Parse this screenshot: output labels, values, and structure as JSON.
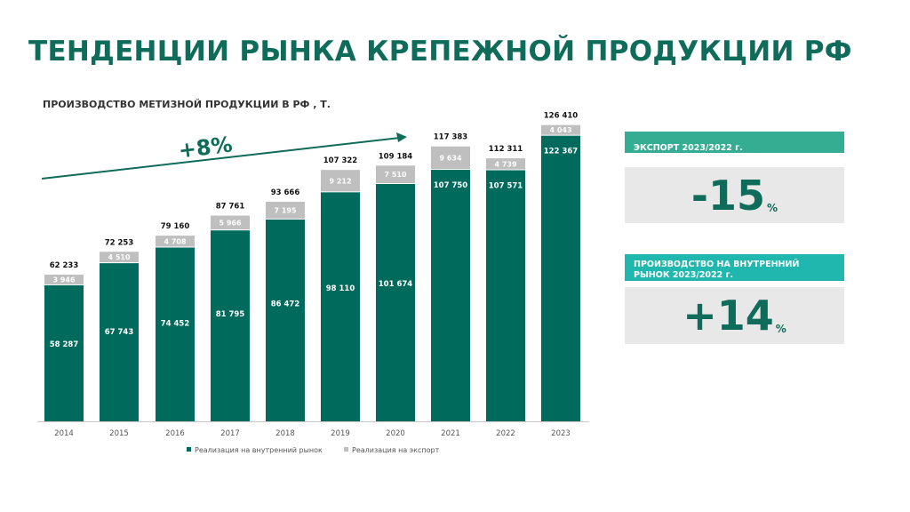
{
  "page": {
    "title": "ТЕНДЕНЦИИ РЫНКА КРЕПЕЖНОЙ ПРОДУКЦИИ РФ"
  },
  "colors": {
    "domestic": "#006b5c",
    "export": "#bfbfbf",
    "title": "#0f6b5a",
    "kpi_header_1": "#35ad93",
    "kpi_header_2": "#1fb7ae",
    "kpi_box": "#e8e8e8"
  },
  "chart_data": {
    "type": "bar",
    "stacked": true,
    "title": "ПРОИЗВОДСТВО МЕТИЗНОЙ ПРОДУКЦИИ В РФ , Т.",
    "categories": [
      "2014",
      "2015",
      "2016",
      "2017",
      "2018",
      "2019",
      "2020",
      "2021",
      "2022",
      "2023"
    ],
    "series": [
      {
        "name": "Реализация на внутренний рынок",
        "values": [
          58287,
          67743,
          74452,
          81795,
          86472,
          98110,
          101674,
          107750,
          107571,
          122367
        ],
        "labels": [
          "58 287",
          "67 743",
          "74 452",
          "81 795",
          "86 472",
          "98 110",
          "101 674",
          "107 750",
          "107 571",
          "122 367"
        ]
      },
      {
        "name": "Реализация на экспорт",
        "values": [
          3946,
          4510,
          4708,
          5966,
          7195,
          9212,
          7510,
          9634,
          4739,
          4043
        ],
        "labels": [
          "3 946",
          "4 510",
          "4 708",
          "5 966",
          "7 195",
          "9 212",
          "7 510",
          "9 634",
          "4 739",
          "4 043"
        ]
      }
    ],
    "totals": [
      62233,
      72253,
      79160,
      87761,
      93666,
      107322,
      109184,
      117383,
      112311,
      126410
    ],
    "total_labels": [
      "62 233",
      "72 253",
      "79 160",
      "87 761",
      "93 666",
      "107 322",
      "109 184",
      "117 383",
      "112 311",
      "126 410"
    ],
    "trend_annotation": "+8%",
    "ylim": [
      0,
      135000
    ],
    "grid": false,
    "legend_position": "bottom"
  },
  "kpis": [
    {
      "header": "ЭКСПОРТ 2023/2022 г.",
      "value": "-15",
      "unit": "%"
    },
    {
      "header": "ПРОИЗВОДСТВО НА ВНУТРЕННИЙ РЫНОК 2023/2022 г.",
      "value": "+14",
      "unit": "%"
    }
  ]
}
